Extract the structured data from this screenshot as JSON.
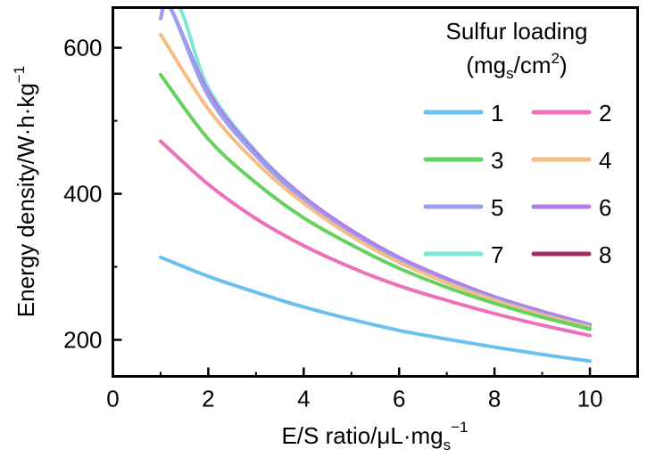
{
  "chart_data": {
    "type": "line",
    "xlabel": {
      "main": "E/S ratio/μL·mg",
      "sub": "s",
      "sup": "−1"
    },
    "ylabel": "Energy density/W·h·kg",
    "ylabel_sup": "−1",
    "xlim": [
      0,
      11
    ],
    "ylim": [
      150,
      655
    ],
    "xticks": [
      0,
      2,
      4,
      6,
      8,
      10
    ],
    "yticks": [
      200,
      400,
      600
    ],
    "grid": false,
    "legend": {
      "title_line1": "Sulfur loading",
      "title_line2": {
        "open": "(mg",
        "sub": "s",
        "mid": "/cm",
        "sup": "2",
        "close": ")"
      },
      "placement": "top-right",
      "columns": 2
    },
    "series": [
      {
        "name": "1",
        "color": "#6cc0f0",
        "x": [
          1,
          2,
          3,
          4,
          5,
          6,
          7,
          8,
          9,
          10
        ],
        "y": [
          313,
          287,
          265,
          245,
          228,
          213,
          201,
          190,
          180,
          171
        ]
      },
      {
        "name": "2",
        "color": "#ee70b8",
        "x": [
          1,
          2,
          3,
          4,
          5,
          6,
          7,
          8,
          9,
          10
        ],
        "y": [
          472,
          413,
          366,
          329,
          299,
          274,
          254,
          236,
          220,
          206
        ]
      },
      {
        "name": "3",
        "color": "#66d060",
        "x": [
          1,
          2,
          3,
          4,
          5,
          6,
          7,
          8,
          9,
          10
        ],
        "y": [
          563,
          475,
          415,
          367,
          330,
          298,
          272,
          250,
          231,
          215
        ]
      },
      {
        "name": "4",
        "color": "#f6be86",
        "x": [
          1,
          2,
          3,
          4,
          5,
          6,
          7,
          8,
          9,
          10
        ],
        "y": [
          618,
          516,
          443,
          387,
          342,
          306,
          278,
          254,
          234,
          217
        ]
      },
      {
        "name": "5",
        "color": "#9aa0ee",
        "x": [
          1,
          1.2,
          2,
          3,
          4,
          5,
          6,
          7,
          8,
          9,
          10
        ],
        "y": [
          640,
          655,
          534,
          452,
          392,
          345,
          309,
          280,
          256,
          236,
          219
        ]
      },
      {
        "name": "6",
        "color": "#b07ee8",
        "x": [
          1,
          1.2,
          2,
          3,
          4,
          5,
          6,
          7,
          8,
          9,
          10
        ],
        "y": [
          640,
          655,
          540,
          456,
          396,
          350,
          313,
          284,
          259,
          239,
          221
        ]
      },
      {
        "name": "7",
        "color": "#7ee8d6",
        "x": [
          1,
          1.4,
          2,
          3,
          4,
          5,
          6,
          7,
          8,
          9,
          10
        ],
        "y": [
          655,
          655,
          545,
          458,
          395,
          347,
          310,
          280,
          255,
          233,
          214
        ]
      },
      {
        "name": "8",
        "color": "#a02e60",
        "x": [],
        "y": []
      }
    ]
  }
}
